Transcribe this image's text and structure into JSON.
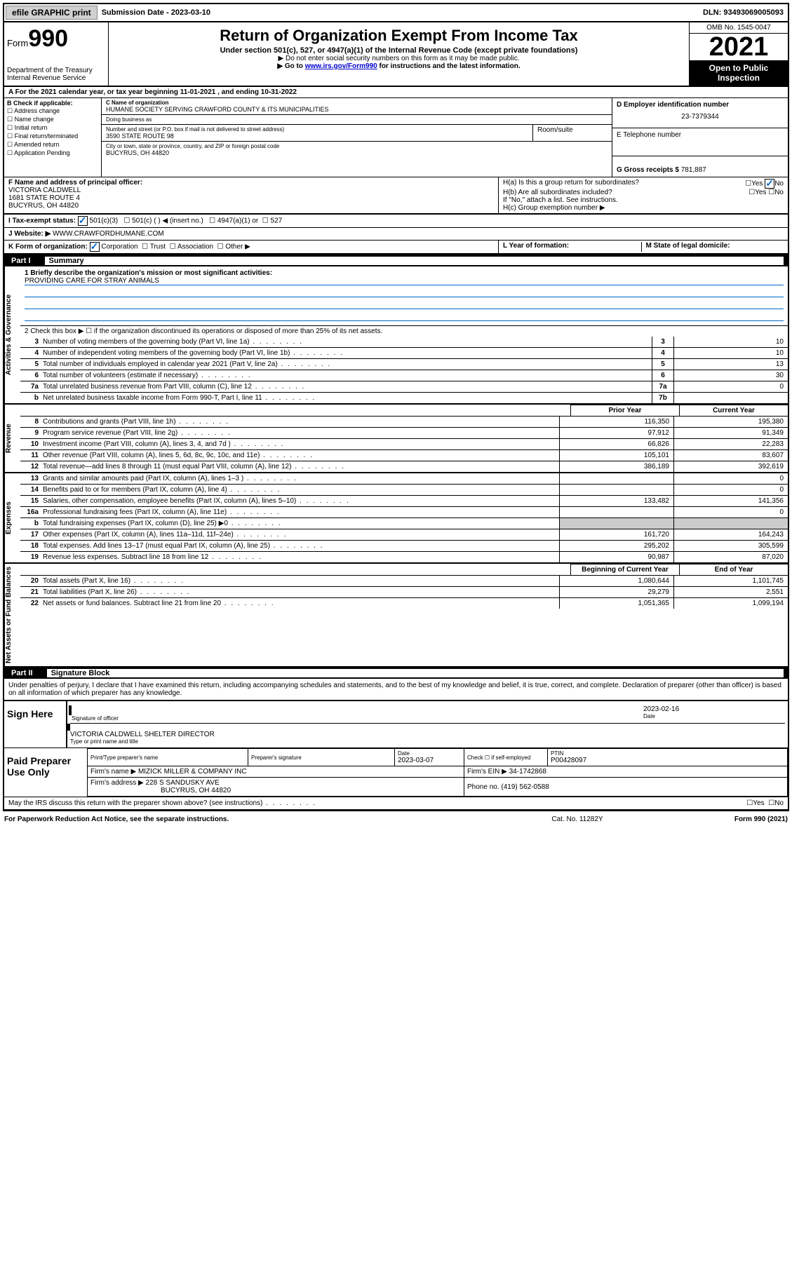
{
  "topbar": {
    "efile": "efile GRAPHIC print",
    "submission_label": "Submission Date - ",
    "submission_date": "2023-03-10",
    "dln_label": "DLN: ",
    "dln": "93493069005093"
  },
  "header": {
    "form_prefix": "Form",
    "form_number": "990",
    "title": "Return of Organization Exempt From Income Tax",
    "subtitle": "Under section 501(c), 527, or 4947(a)(1) of the Internal Revenue Code (except private foundations)",
    "note1": "▶ Do not enter social security numbers on this form as it may be made public.",
    "note2_prefix": "▶ Go to ",
    "note2_link": "www.irs.gov/Form990",
    "note2_suffix": " for instructions and the latest information.",
    "dept": "Department of the Treasury\nInternal Revenue Service",
    "omb": "OMB No. 1545-0047",
    "year": "2021",
    "open_public": "Open to Public Inspection"
  },
  "rowA": {
    "text_prefix": "A For the 2021 calendar year, or tax year beginning ",
    "begin": "11-01-2021",
    "mid": " , and ending ",
    "end": "10-31-2022"
  },
  "sectionB": {
    "label": "B Check if applicable:",
    "options": [
      "Address change",
      "Name change",
      "Initial return",
      "Final return/terminated",
      "Amended return",
      "Application Pending"
    ]
  },
  "sectionC": {
    "name_label": "C Name of organization",
    "name": "HUMANE SOCIETY SERVING CRAWFORD COUNTY & ITS MUNICIPALITIES",
    "dba_label": "Doing business as",
    "addr_label": "Number and street (or P.O. box if mail is not delivered to street address)",
    "room_label": "Room/suite",
    "addr": "3590 STATE ROUTE 98",
    "city_label": "City or town, state or province, country, and ZIP or foreign postal code",
    "city": "BUCYRUS, OH  44820"
  },
  "sectionD": {
    "label": "D Employer identification number",
    "ein": "23-7379344",
    "e_label": "E Telephone number",
    "g_label": "G Gross receipts $ ",
    "g_value": "781,887"
  },
  "sectionF": {
    "label": "F Name and address of principal officer:",
    "name": "VICTORIA CALDWELL",
    "addr1": "1681 STATE ROUTE 4",
    "addr2": "BUCYRUS, OH  44820"
  },
  "sectionH": {
    "ha": "H(a)  Is this a group return for subordinates?",
    "ha_no": "No",
    "hb": "H(b)  Are all subordinates included?",
    "hb_note": "If \"No,\" attach a list. See instructions.",
    "hc": "H(c)  Group exemption number ▶"
  },
  "rowI": {
    "label": "I   Tax-exempt status:",
    "opt1": "501(c)(3)",
    "opt2": "501(c) (  ) ◀ (insert no.)",
    "opt3": "4947(a)(1) or",
    "opt4": "527"
  },
  "rowJ": {
    "label": "J   Website: ▶",
    "value": "WWW.CRAWFORDHUMANE.COM"
  },
  "rowK": {
    "label": "K Form of organization:",
    "opts": [
      "Corporation",
      "Trust",
      "Association",
      "Other ▶"
    ],
    "l_label": "L Year of formation:",
    "m_label": "M State of legal domicile:"
  },
  "partI": {
    "label": "Part I",
    "title": "Summary"
  },
  "mission": {
    "label": "1   Briefly describe the organization's mission or most significant activities:",
    "text": "PROVIDING CARE FOR STRAY ANIMALS"
  },
  "line2": "2    Check this box ▶ ☐  if the organization discontinued its operations or disposed of more than 25% of its net assets.",
  "governance_lines": [
    {
      "n": "3",
      "d": "Number of voting members of the governing body (Part VI, line 1a)",
      "box": "3",
      "v": "10"
    },
    {
      "n": "4",
      "d": "Number of independent voting members of the governing body (Part VI, line 1b)",
      "box": "4",
      "v": "10"
    },
    {
      "n": "5",
      "d": "Total number of individuals employed in calendar year 2021 (Part V, line 2a)",
      "box": "5",
      "v": "13"
    },
    {
      "n": "6",
      "d": "Total number of volunteers (estimate if necessary)",
      "box": "6",
      "v": "30"
    },
    {
      "n": "7a",
      "d": "Total unrelated business revenue from Part VIII, column (C), line 12",
      "box": "7a",
      "v": "0"
    },
    {
      "n": "b",
      "d": "Net unrelated business taxable income from Form 990-T, Part I, line 11",
      "box": "7b",
      "v": ""
    }
  ],
  "col_headers": {
    "prior": "Prior Year",
    "current": "Current Year"
  },
  "revenue_lines": [
    {
      "n": "8",
      "d": "Contributions and grants (Part VIII, line 1h)",
      "p": "116,350",
      "c": "195,380"
    },
    {
      "n": "9",
      "d": "Program service revenue (Part VIII, line 2g)",
      "p": "97,912",
      "c": "91,349"
    },
    {
      "n": "10",
      "d": "Investment income (Part VIII, column (A), lines 3, 4, and 7d )",
      "p": "66,826",
      "c": "22,283"
    },
    {
      "n": "11",
      "d": "Other revenue (Part VIII, column (A), lines 5, 6d, 8c, 9c, 10c, and 11e)",
      "p": "105,101",
      "c": "83,607"
    },
    {
      "n": "12",
      "d": "Total revenue—add lines 8 through 11 (must equal Part VIII, column (A), line 12)",
      "p": "386,189",
      "c": "392,619"
    }
  ],
  "expense_lines": [
    {
      "n": "13",
      "d": "Grants and similar amounts paid (Part IX, column (A), lines 1–3 )",
      "p": "",
      "c": "0"
    },
    {
      "n": "14",
      "d": "Benefits paid to or for members (Part IX, column (A), line 4)",
      "p": "",
      "c": "0"
    },
    {
      "n": "15",
      "d": "Salaries, other compensation, employee benefits (Part IX, column (A), lines 5–10)",
      "p": "133,482",
      "c": "141,356"
    },
    {
      "n": "16a",
      "d": "Professional fundraising fees (Part IX, column (A), line 11e)",
      "p": "",
      "c": "0"
    },
    {
      "n": "b",
      "d": "Total fundraising expenses (Part IX, column (D), line 25) ▶0",
      "p": "grey",
      "c": "grey"
    },
    {
      "n": "17",
      "d": "Other expenses (Part IX, column (A), lines 11a–11d, 11f–24e)",
      "p": "161,720",
      "c": "164,243"
    },
    {
      "n": "18",
      "d": "Total expenses. Add lines 13–17 (must equal Part IX, column (A), line 25)",
      "p": "295,202",
      "c": "305,599"
    },
    {
      "n": "19",
      "d": "Revenue less expenses. Subtract line 18 from line 12",
      "p": "90,987",
      "c": "87,020"
    }
  ],
  "balance_headers": {
    "begin": "Beginning of Current Year",
    "end": "End of Year"
  },
  "balance_lines": [
    {
      "n": "20",
      "d": "Total assets (Part X, line 16)",
      "p": "1,080,644",
      "c": "1,101,745"
    },
    {
      "n": "21",
      "d": "Total liabilities (Part X, line 26)",
      "p": "29,279",
      "c": "2,551"
    },
    {
      "n": "22",
      "d": "Net assets or fund balances. Subtract line 21 from line 20",
      "p": "1,051,365",
      "c": "1,099,194"
    }
  ],
  "tabs": {
    "gov": "Activities & Governance",
    "rev": "Revenue",
    "exp": "Expenses",
    "bal": "Net Assets or Fund Balances"
  },
  "partII": {
    "label": "Part II",
    "title": "Signature Block",
    "declaration": "Under penalties of perjury, I declare that I have examined this return, including accompanying schedules and statements, and to the best of my knowledge and belief, it is true, correct, and complete. Declaration of preparer (other than officer) is based on all information of which preparer has any knowledge."
  },
  "sign": {
    "label": "Sign Here",
    "sig_of_officer": "Signature of officer",
    "date_label": "Date",
    "date": "2023-02-16",
    "name": "VICTORIA CALDWELL SHELTER DIRECTOR",
    "type_label": "Type or print name and title"
  },
  "paid": {
    "label": "Paid Preparer Use Only",
    "h1": "Print/Type preparer's name",
    "h2": "Preparer's signature",
    "h3": "Date",
    "date": "2023-03-07",
    "h4": "Check ☐ if self-employed",
    "h5": "PTIN",
    "ptin": "P00428097",
    "firm_name_label": "Firm's name     ▶",
    "firm_name": "MIZICK MILLER & COMPANY INC",
    "firm_ein_label": "Firm's EIN ▶",
    "firm_ein": "34-1742868",
    "firm_addr_label": "Firm's address ▶",
    "firm_addr": "228 S SANDUSKY AVE",
    "firm_city": "BUCYRUS, OH  44820",
    "phone_label": "Phone no.",
    "phone": "(419) 562-0588"
  },
  "discuss": "May the IRS discuss this return with the preparer shown above? (see instructions)",
  "footer": {
    "left": "For Paperwork Reduction Act Notice, see the separate instructions.",
    "mid": "Cat. No. 11282Y",
    "right": "Form 990 (2021)"
  }
}
